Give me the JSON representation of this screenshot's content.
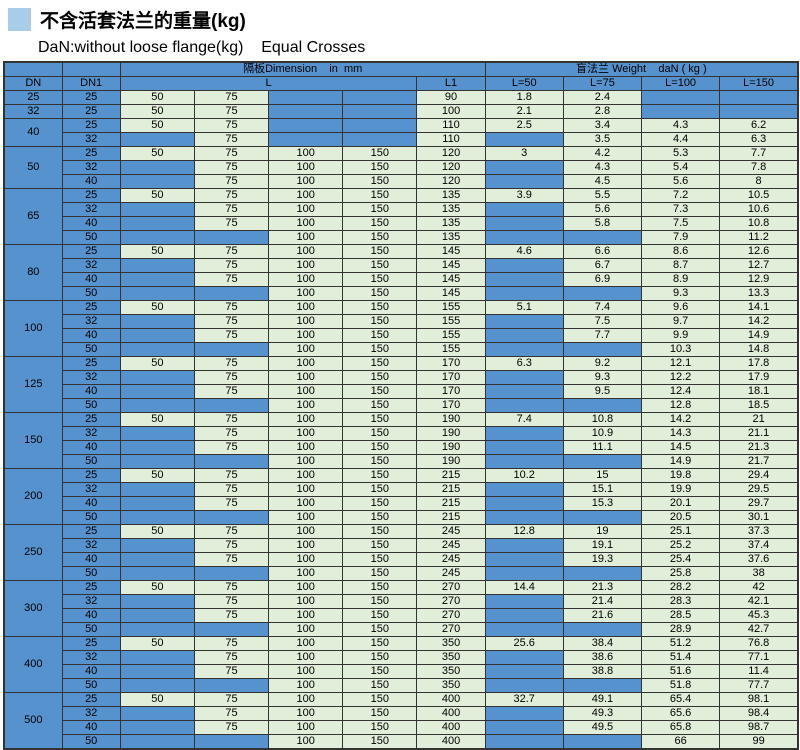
{
  "title": "不含活套法兰的重量(kg)",
  "subtitle": "DaN:without loose flange(kg)    Equal Crosses",
  "colors": {
    "cell_blue": "#5592CE",
    "cell_green": "#E1EEDA",
    "grid_line": "#333333",
    "title_square_blue": "#A9CCE9"
  },
  "table": {
    "header": {
      "dimension_span": "隔板Dimension    in  mm",
      "weight_span": "盲法兰 Weight    daN ( kg )",
      "dn": "DN",
      "dn1": "DN1",
      "l": "L",
      "l1": "L1",
      "w_cols": [
        "L=50",
        "L=75",
        "L=100",
        "L=150"
      ]
    },
    "groups": [
      {
        "dn": "25",
        "rows": [
          {
            "dn1": "25",
            "l": [
              "50",
              "75",
              "",
              ""
            ],
            "l1": "90",
            "w": [
              "1.8",
              "2.4",
              "",
              ""
            ]
          }
        ]
      },
      {
        "dn": "32",
        "rows": [
          {
            "dn1": "25",
            "l": [
              "50",
              "75",
              "",
              ""
            ],
            "l1": "100",
            "w": [
              "2.1",
              "2.8",
              "",
              ""
            ]
          }
        ]
      },
      {
        "dn": "40",
        "rows": [
          {
            "dn1": "25",
            "l": [
              "50",
              "75",
              "",
              ""
            ],
            "l1": "110",
            "w": [
              "2.5",
              "3.4",
              "4.3",
              "6.2"
            ]
          },
          {
            "dn1": "32",
            "l": [
              "",
              "75",
              "",
              ""
            ],
            "l1": "110",
            "w": [
              "",
              "3.5",
              "4.4",
              "6.3"
            ]
          }
        ]
      },
      {
        "dn": "50",
        "rows": [
          {
            "dn1": "25",
            "l": [
              "50",
              "75",
              "100",
              "150"
            ],
            "l1": "120",
            "w": [
              "3",
              "4.2",
              "5.3",
              "7.7"
            ]
          },
          {
            "dn1": "32",
            "l": [
              "",
              "75",
              "100",
              "150"
            ],
            "l1": "120",
            "w": [
              "",
              "4.3",
              "5.4",
              "7.8"
            ]
          },
          {
            "dn1": "40",
            "l": [
              "",
              "75",
              "100",
              "150"
            ],
            "l1": "120",
            "w": [
              "",
              "4.5",
              "5.6",
              "8"
            ]
          }
        ]
      },
      {
        "dn": "65",
        "rows": [
          {
            "dn1": "25",
            "l": [
              "50",
              "75",
              "100",
              "150"
            ],
            "l1": "135",
            "w": [
              "3.9",
              "5.5",
              "7.2",
              "10.5"
            ]
          },
          {
            "dn1": "32",
            "l": [
              "",
              "75",
              "100",
              "150"
            ],
            "l1": "135",
            "w": [
              "",
              "5.6",
              "7.3",
              "10.6"
            ]
          },
          {
            "dn1": "40",
            "l": [
              "",
              "75",
              "100",
              "150"
            ],
            "l1": "135",
            "w": [
              "",
              "5.8",
              "7.5",
              "10.8"
            ]
          },
          {
            "dn1": "50",
            "l": [
              "",
              "",
              "100",
              "150"
            ],
            "l1": "135",
            "w": [
              "",
              "",
              "7.9",
              "11.2"
            ]
          }
        ]
      },
      {
        "dn": "80",
        "rows": [
          {
            "dn1": "25",
            "l": [
              "50",
              "75",
              "100",
              "150"
            ],
            "l1": "145",
            "w": [
              "4.6",
              "6.6",
              "8.6",
              "12.6"
            ]
          },
          {
            "dn1": "32",
            "l": [
              "",
              "75",
              "100",
              "150"
            ],
            "l1": "145",
            "w": [
              "",
              "6.7",
              "8.7",
              "12.7"
            ]
          },
          {
            "dn1": "40",
            "l": [
              "",
              "75",
              "100",
              "150"
            ],
            "l1": "145",
            "w": [
              "",
              "6.9",
              "8.9",
              "12.9"
            ]
          },
          {
            "dn1": "50",
            "l": [
              "",
              "",
              "100",
              "150"
            ],
            "l1": "145",
            "w": [
              "",
              "",
              "9.3",
              "13.3"
            ]
          }
        ]
      },
      {
        "dn": "100",
        "rows": [
          {
            "dn1": "25",
            "l": [
              "50",
              "75",
              "100",
              "150"
            ],
            "l1": "155",
            "w": [
              "5.1",
              "7.4",
              "9.6",
              "14.1"
            ]
          },
          {
            "dn1": "32",
            "l": [
              "",
              "75",
              "100",
              "150"
            ],
            "l1": "155",
            "w": [
              "",
              "7.5",
              "9.7",
              "14.2"
            ]
          },
          {
            "dn1": "40",
            "l": [
              "",
              "75",
              "100",
              "150"
            ],
            "l1": "155",
            "w": [
              "",
              "7.7",
              "9.9",
              "14.9"
            ]
          },
          {
            "dn1": "50",
            "l": [
              "",
              "",
              "100",
              "150"
            ],
            "l1": "155",
            "w": [
              "",
              "",
              "10.3",
              "14.8"
            ]
          }
        ]
      },
      {
        "dn": "125",
        "rows": [
          {
            "dn1": "25",
            "l": [
              "50",
              "75",
              "100",
              "150"
            ],
            "l1": "170",
            "w": [
              "6.3",
              "9.2",
              "12.1",
              "17.8"
            ]
          },
          {
            "dn1": "32",
            "l": [
              "",
              "75",
              "100",
              "150"
            ],
            "l1": "170",
            "w": [
              "",
              "9.3",
              "12.2",
              "17.9"
            ]
          },
          {
            "dn1": "40",
            "l": [
              "",
              "75",
              "100",
              "150"
            ],
            "l1": "170",
            "w": [
              "",
              "9.5",
              "12.4",
              "18.1"
            ]
          },
          {
            "dn1": "50",
            "l": [
              "",
              "",
              "100",
              "150"
            ],
            "l1": "170",
            "w": [
              "",
              "",
              "12.8",
              "18.5"
            ]
          }
        ]
      },
      {
        "dn": "150",
        "rows": [
          {
            "dn1": "25",
            "l": [
              "50",
              "75",
              "100",
              "150"
            ],
            "l1": "190",
            "w": [
              "7.4",
              "10.8",
              "14.2",
              "21"
            ]
          },
          {
            "dn1": "32",
            "l": [
              "",
              "75",
              "100",
              "150"
            ],
            "l1": "190",
            "w": [
              "",
              "10.9",
              "14.3",
              "21.1"
            ]
          },
          {
            "dn1": "40",
            "l": [
              "",
              "75",
              "100",
              "150"
            ],
            "l1": "190",
            "w": [
              "",
              "11.1",
              "14.5",
              "21.3"
            ]
          },
          {
            "dn1": "50",
            "l": [
              "",
              "",
              "100",
              "150"
            ],
            "l1": "190",
            "w": [
              "",
              "",
              "14.9",
              "21.7"
            ]
          }
        ]
      },
      {
        "dn": "200",
        "rows": [
          {
            "dn1": "25",
            "l": [
              "50",
              "75",
              "100",
              "150"
            ],
            "l1": "215",
            "w": [
              "10.2",
              "15",
              "19.8",
              "29.4"
            ]
          },
          {
            "dn1": "32",
            "l": [
              "",
              "75",
              "100",
              "150"
            ],
            "l1": "215",
            "w": [
              "",
              "15.1",
              "19.9",
              "29.5"
            ]
          },
          {
            "dn1": "40",
            "l": [
              "",
              "75",
              "100",
              "150"
            ],
            "l1": "215",
            "w": [
              "",
              "15.3",
              "20.1",
              "29.7"
            ]
          },
          {
            "dn1": "50",
            "l": [
              "",
              "",
              "100",
              "150"
            ],
            "l1": "215",
            "w": [
              "",
              "",
              "20.5",
              "30.1"
            ]
          }
        ]
      },
      {
        "dn": "250",
        "rows": [
          {
            "dn1": "25",
            "l": [
              "50",
              "75",
              "100",
              "150"
            ],
            "l1": "245",
            "w": [
              "12.8",
              "19",
              "25.1",
              "37.3"
            ]
          },
          {
            "dn1": "32",
            "l": [
              "",
              "75",
              "100",
              "150"
            ],
            "l1": "245",
            "w": [
              "",
              "19.1",
              "25.2",
              "37.4"
            ]
          },
          {
            "dn1": "40",
            "l": [
              "",
              "75",
              "100",
              "150"
            ],
            "l1": "245",
            "w": [
              "",
              "19.3",
              "25.4",
              "37.6"
            ]
          },
          {
            "dn1": "50",
            "l": [
              "",
              "",
              "100",
              "150"
            ],
            "l1": "245",
            "w": [
              "",
              "",
              "25.8",
              "38"
            ]
          }
        ]
      },
      {
        "dn": "300",
        "rows": [
          {
            "dn1": "25",
            "l": [
              "50",
              "75",
              "100",
              "150"
            ],
            "l1": "270",
            "w": [
              "14.4",
              "21.3",
              "28.2",
              "42"
            ]
          },
          {
            "dn1": "32",
            "l": [
              "",
              "75",
              "100",
              "150"
            ],
            "l1": "270",
            "w": [
              "",
              "21.4",
              "28.3",
              "42.1"
            ]
          },
          {
            "dn1": "40",
            "l": [
              "",
              "75",
              "100",
              "150"
            ],
            "l1": "270",
            "w": [
              "",
              "21.6",
              "28.5",
              "45.3"
            ]
          },
          {
            "dn1": "50",
            "l": [
              "",
              "",
              "100",
              "150"
            ],
            "l1": "270",
            "w": [
              "",
              "",
              "28.9",
              "42.7"
            ]
          }
        ]
      },
      {
        "dn": "400",
        "rows": [
          {
            "dn1": "25",
            "l": [
              "50",
              "75",
              "100",
              "150"
            ],
            "l1": "350",
            "w": [
              "25.6",
              "38.4",
              "51.2",
              "76.8"
            ]
          },
          {
            "dn1": "32",
            "l": [
              "",
              "75",
              "100",
              "150"
            ],
            "l1": "350",
            "w": [
              "",
              "38.6",
              "51.4",
              "77.1"
            ]
          },
          {
            "dn1": "40",
            "l": [
              "",
              "75",
              "100",
              "150"
            ],
            "l1": "350",
            "w": [
              "",
              "38.8",
              "51.6",
              "11.4"
            ]
          },
          {
            "dn1": "50",
            "l": [
              "",
              "",
              "100",
              "150"
            ],
            "l1": "350",
            "w": [
              "",
              "",
              "51.8",
              "77.7"
            ]
          }
        ]
      },
      {
        "dn": "500",
        "rows": [
          {
            "dn1": "25",
            "l": [
              "50",
              "75",
              "100",
              "150"
            ],
            "l1": "400",
            "w": [
              "32.7",
              "49.1",
              "65.4",
              "98.1"
            ]
          },
          {
            "dn1": "32",
            "l": [
              "",
              "75",
              "100",
              "150"
            ],
            "l1": "400",
            "w": [
              "",
              "49.3",
              "65.6",
              "98.4"
            ]
          },
          {
            "dn1": "40",
            "l": [
              "",
              "75",
              "100",
              "150"
            ],
            "l1": "400",
            "w": [
              "",
              "49.5",
              "65.8",
              "98.7"
            ]
          },
          {
            "dn1": "50",
            "l": [
              "",
              "",
              "100",
              "150"
            ],
            "l1": "400",
            "w": [
              "",
              "",
              "66",
              "99"
            ]
          }
        ]
      }
    ]
  }
}
